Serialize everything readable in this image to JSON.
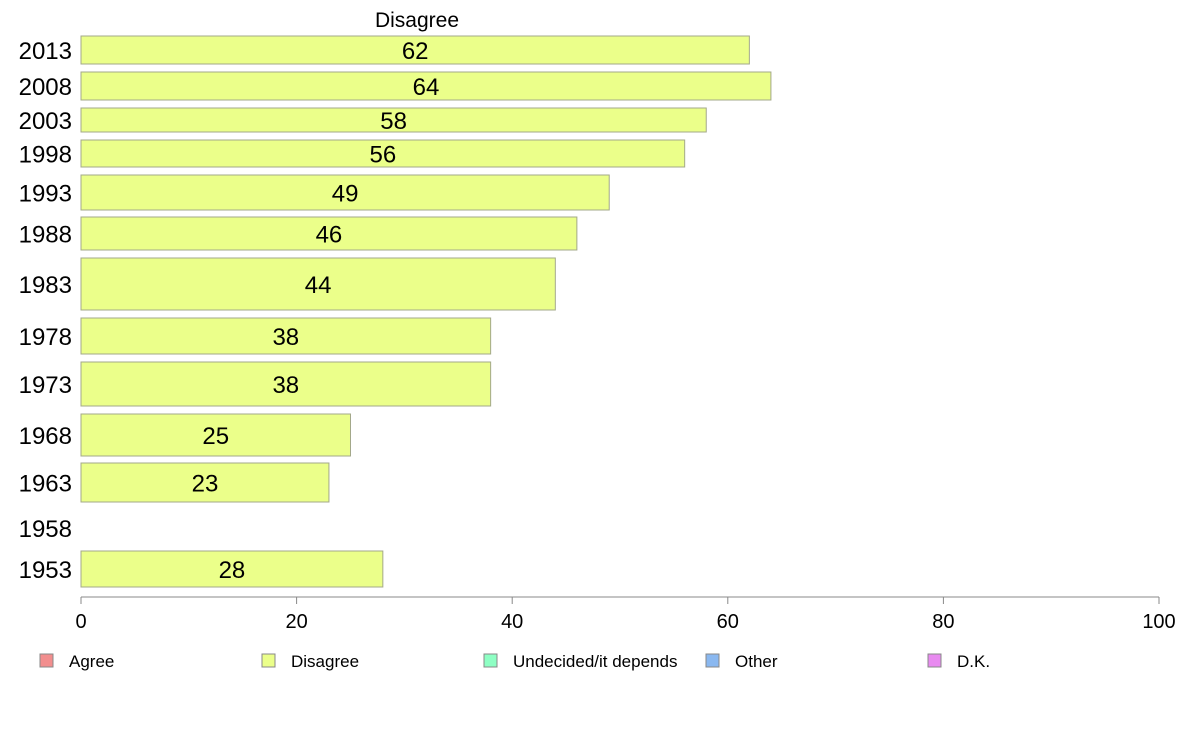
{
  "chart_data": {
    "type": "bar",
    "orientation": "horizontal",
    "title": "Disagree",
    "categories": [
      "2013",
      "2008",
      "2003",
      "1998",
      "1993",
      "1988",
      "1983",
      "1978",
      "1973",
      "1968",
      "1963",
      "1958",
      "1953"
    ],
    "series": [
      {
        "name": "Disagree",
        "values": [
          62,
          64,
          58,
          56,
          49,
          46,
          44,
          38,
          38,
          25,
          23,
          null,
          28
        ]
      }
    ],
    "xlim": [
      0,
      100
    ],
    "xticks": [
      0,
      20,
      40,
      60,
      80,
      100
    ],
    "grid": false,
    "legend_position": "bottom",
    "legend": [
      {
        "label": "Agree",
        "color": "#f28e8e"
      },
      {
        "label": "Disagree",
        "color": "#ebff8a"
      },
      {
        "label": "Undecided/it depends",
        "color": "#8effc4"
      },
      {
        "label": "Other",
        "color": "#8ab8f0"
      },
      {
        "label": "D.K.",
        "color": "#e88af0"
      }
    ],
    "bar_color": "#ebff8a",
    "bar_edge_color": "#a3a88a"
  }
}
